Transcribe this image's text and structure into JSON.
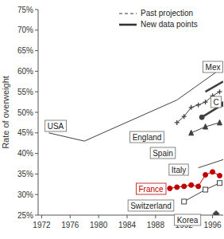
{
  "chart_data": {
    "type": "line",
    "y_label": "Rate of overweight",
    "xlim": [
      1971.5,
      1997.5
    ],
    "xticks": [
      1972,
      1976,
      1980,
      1984,
      1988,
      1992,
      1996
    ],
    "ylim": [
      25,
      75
    ],
    "yticks": [
      {
        "value": 25,
        "label": "25%"
      },
      {
        "value": 30,
        "label": "30%"
      },
      {
        "value": 35,
        "label": "35%"
      },
      {
        "value": 40,
        "label": "40%"
      },
      {
        "value": 45,
        "label": "45%"
      },
      {
        "value": 50,
        "label": "50%"
      },
      {
        "value": 55,
        "label": "55%"
      },
      {
        "value": 60,
        "label": "60%"
      },
      {
        "value": 65,
        "label": "65%"
      },
      {
        "value": 70,
        "label": "70%"
      },
      {
        "value": 75,
        "label": "75%"
      }
    ],
    "grid": false,
    "legend": "top-right",
    "legend_entries": [
      {
        "name": "Past projection",
        "line_style": "dashed"
      },
      {
        "name": "New data points",
        "line_style": "thick"
      }
    ],
    "series": [
      {
        "name": "USA",
        "color": "#404040",
        "marker": "none",
        "line_style": "solid",
        "x": [
          1973,
          1978,
          1991,
          1997.5
        ],
        "values": [
          45,
          43,
          53,
          61
        ]
      },
      {
        "name": "England",
        "color": "#404040",
        "marker": "plus",
        "line_style": "solid",
        "x": [
          1991,
          1992,
          1993,
          1994,
          1995,
          1996,
          1997
        ],
        "values": [
          47.5,
          49,
          51.2,
          51.8,
          52.5,
          54,
          55
        ]
      },
      {
        "name": "Spain",
        "color": "#404040",
        "marker": "triangle",
        "line_style": "solid",
        "x": [
          1993,
          1995,
          1997
        ],
        "values": [
          45,
          46.5,
          47.5
        ]
      },
      {
        "name": "Italy",
        "color": "#404040",
        "marker": "none",
        "line_style": "solid",
        "x": [
          1994,
          1997.5
        ],
        "values": [
          36.5,
          38.5
        ]
      },
      {
        "name": "France",
        "color": "#c00000",
        "marker": "circle",
        "line_style": "solid",
        "x": [
          1990,
          1991,
          1992,
          1993,
          1994,
          1995,
          1996,
          1997
        ],
        "values": [
          31.5,
          31.8,
          32,
          32.3,
          32,
          34.8,
          35.5,
          34.6
        ]
      },
      {
        "name": "Switzerland",
        "color": "#404040",
        "marker": "square",
        "line_style": "solid",
        "x": [
          1992,
          1995,
          1997
        ],
        "values": [
          28.3,
          31.2,
          32.8
        ]
      },
      {
        "name": "Korea",
        "color": "#404040",
        "marker": "diamond",
        "line_style": "solid",
        "x": [
          1996.5
        ],
        "values": [
          25.3
        ]
      },
      {
        "name": "Mex",
        "color": "#404040",
        "marker": "none",
        "line_style": "thick",
        "x": [
          1995,
          1997.5
        ],
        "values": [
          55,
          57.5
        ]
      },
      {
        "name": "C",
        "color": "#404040",
        "marker": "circle",
        "line_style": "thick",
        "x": [
          1994.5,
          1997.5
        ],
        "values": [
          48.8,
          52
        ]
      }
    ]
  }
}
